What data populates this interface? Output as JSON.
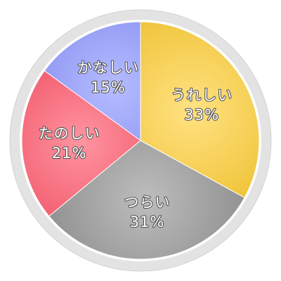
{
  "chart_data": {
    "type": "pie",
    "slices": [
      {
        "label": "うれしい",
        "value": 33,
        "value_text": "33%",
        "color": "#ffd23f"
      },
      {
        "label": "つらい",
        "value": 31,
        "value_text": "31%",
        "color": "#9a9a9a"
      },
      {
        "label": "たのしい",
        "value": 21,
        "value_text": "21%",
        "color": "#ff5a6e"
      },
      {
        "label": "かなしい",
        "value": 15,
        "value_text": "15%",
        "color": "#8f98ff"
      }
    ],
    "rim_color": "#e0e0e0",
    "start_angle_deg": 0,
    "direction": "clockwise"
  }
}
